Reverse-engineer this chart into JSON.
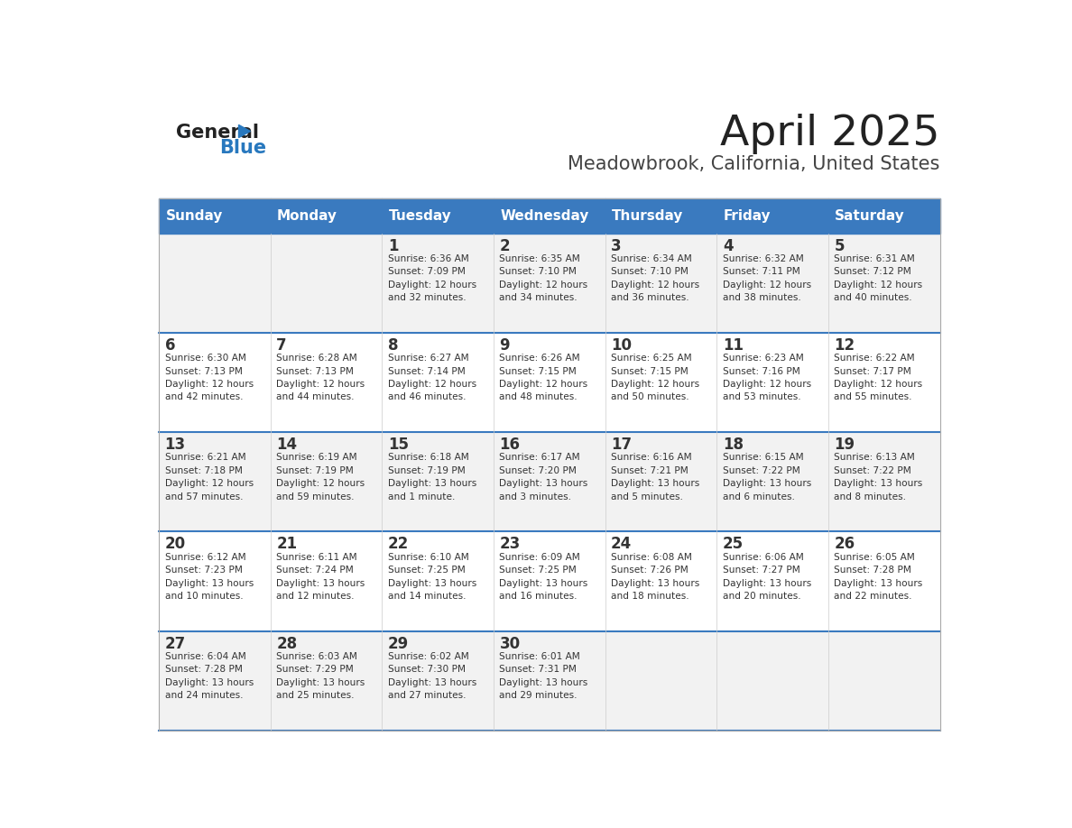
{
  "title": "April 2025",
  "subtitle": "Meadowbrook, California, United States",
  "days_of_week": [
    "Sunday",
    "Monday",
    "Tuesday",
    "Wednesday",
    "Thursday",
    "Friday",
    "Saturday"
  ],
  "header_bg": "#3a7abf",
  "header_text": "#ffffff",
  "row_bg_odd": "#f2f2f2",
  "row_bg_even": "#ffffff",
  "separator_color": "#3a7abf",
  "day_num_color": "#333333",
  "cell_text_color": "#333333",
  "title_color": "#222222",
  "subtitle_color": "#444444",
  "logo_general_color": "#222222",
  "logo_blue_color": "#2878be",
  "calendar": [
    [
      {
        "day": null,
        "info": null
      },
      {
        "day": null,
        "info": null
      },
      {
        "day": 1,
        "info": "Sunrise: 6:36 AM\nSunset: 7:09 PM\nDaylight: 12 hours\nand 32 minutes."
      },
      {
        "day": 2,
        "info": "Sunrise: 6:35 AM\nSunset: 7:10 PM\nDaylight: 12 hours\nand 34 minutes."
      },
      {
        "day": 3,
        "info": "Sunrise: 6:34 AM\nSunset: 7:10 PM\nDaylight: 12 hours\nand 36 minutes."
      },
      {
        "day": 4,
        "info": "Sunrise: 6:32 AM\nSunset: 7:11 PM\nDaylight: 12 hours\nand 38 minutes."
      },
      {
        "day": 5,
        "info": "Sunrise: 6:31 AM\nSunset: 7:12 PM\nDaylight: 12 hours\nand 40 minutes."
      }
    ],
    [
      {
        "day": 6,
        "info": "Sunrise: 6:30 AM\nSunset: 7:13 PM\nDaylight: 12 hours\nand 42 minutes."
      },
      {
        "day": 7,
        "info": "Sunrise: 6:28 AM\nSunset: 7:13 PM\nDaylight: 12 hours\nand 44 minutes."
      },
      {
        "day": 8,
        "info": "Sunrise: 6:27 AM\nSunset: 7:14 PM\nDaylight: 12 hours\nand 46 minutes."
      },
      {
        "day": 9,
        "info": "Sunrise: 6:26 AM\nSunset: 7:15 PM\nDaylight: 12 hours\nand 48 minutes."
      },
      {
        "day": 10,
        "info": "Sunrise: 6:25 AM\nSunset: 7:15 PM\nDaylight: 12 hours\nand 50 minutes."
      },
      {
        "day": 11,
        "info": "Sunrise: 6:23 AM\nSunset: 7:16 PM\nDaylight: 12 hours\nand 53 minutes."
      },
      {
        "day": 12,
        "info": "Sunrise: 6:22 AM\nSunset: 7:17 PM\nDaylight: 12 hours\nand 55 minutes."
      }
    ],
    [
      {
        "day": 13,
        "info": "Sunrise: 6:21 AM\nSunset: 7:18 PM\nDaylight: 12 hours\nand 57 minutes."
      },
      {
        "day": 14,
        "info": "Sunrise: 6:19 AM\nSunset: 7:19 PM\nDaylight: 12 hours\nand 59 minutes."
      },
      {
        "day": 15,
        "info": "Sunrise: 6:18 AM\nSunset: 7:19 PM\nDaylight: 13 hours\nand 1 minute."
      },
      {
        "day": 16,
        "info": "Sunrise: 6:17 AM\nSunset: 7:20 PM\nDaylight: 13 hours\nand 3 minutes."
      },
      {
        "day": 17,
        "info": "Sunrise: 6:16 AM\nSunset: 7:21 PM\nDaylight: 13 hours\nand 5 minutes."
      },
      {
        "day": 18,
        "info": "Sunrise: 6:15 AM\nSunset: 7:22 PM\nDaylight: 13 hours\nand 6 minutes."
      },
      {
        "day": 19,
        "info": "Sunrise: 6:13 AM\nSunset: 7:22 PM\nDaylight: 13 hours\nand 8 minutes."
      }
    ],
    [
      {
        "day": 20,
        "info": "Sunrise: 6:12 AM\nSunset: 7:23 PM\nDaylight: 13 hours\nand 10 minutes."
      },
      {
        "day": 21,
        "info": "Sunrise: 6:11 AM\nSunset: 7:24 PM\nDaylight: 13 hours\nand 12 minutes."
      },
      {
        "day": 22,
        "info": "Sunrise: 6:10 AM\nSunset: 7:25 PM\nDaylight: 13 hours\nand 14 minutes."
      },
      {
        "day": 23,
        "info": "Sunrise: 6:09 AM\nSunset: 7:25 PM\nDaylight: 13 hours\nand 16 minutes."
      },
      {
        "day": 24,
        "info": "Sunrise: 6:08 AM\nSunset: 7:26 PM\nDaylight: 13 hours\nand 18 minutes."
      },
      {
        "day": 25,
        "info": "Sunrise: 6:06 AM\nSunset: 7:27 PM\nDaylight: 13 hours\nand 20 minutes."
      },
      {
        "day": 26,
        "info": "Sunrise: 6:05 AM\nSunset: 7:28 PM\nDaylight: 13 hours\nand 22 minutes."
      }
    ],
    [
      {
        "day": 27,
        "info": "Sunrise: 6:04 AM\nSunset: 7:28 PM\nDaylight: 13 hours\nand 24 minutes."
      },
      {
        "day": 28,
        "info": "Sunrise: 6:03 AM\nSunset: 7:29 PM\nDaylight: 13 hours\nand 25 minutes."
      },
      {
        "day": 29,
        "info": "Sunrise: 6:02 AM\nSunset: 7:30 PM\nDaylight: 13 hours\nand 27 minutes."
      },
      {
        "day": 30,
        "info": "Sunrise: 6:01 AM\nSunset: 7:31 PM\nDaylight: 13 hours\nand 29 minutes."
      },
      {
        "day": null,
        "info": null
      },
      {
        "day": null,
        "info": null
      },
      {
        "day": null,
        "info": null
      }
    ]
  ]
}
